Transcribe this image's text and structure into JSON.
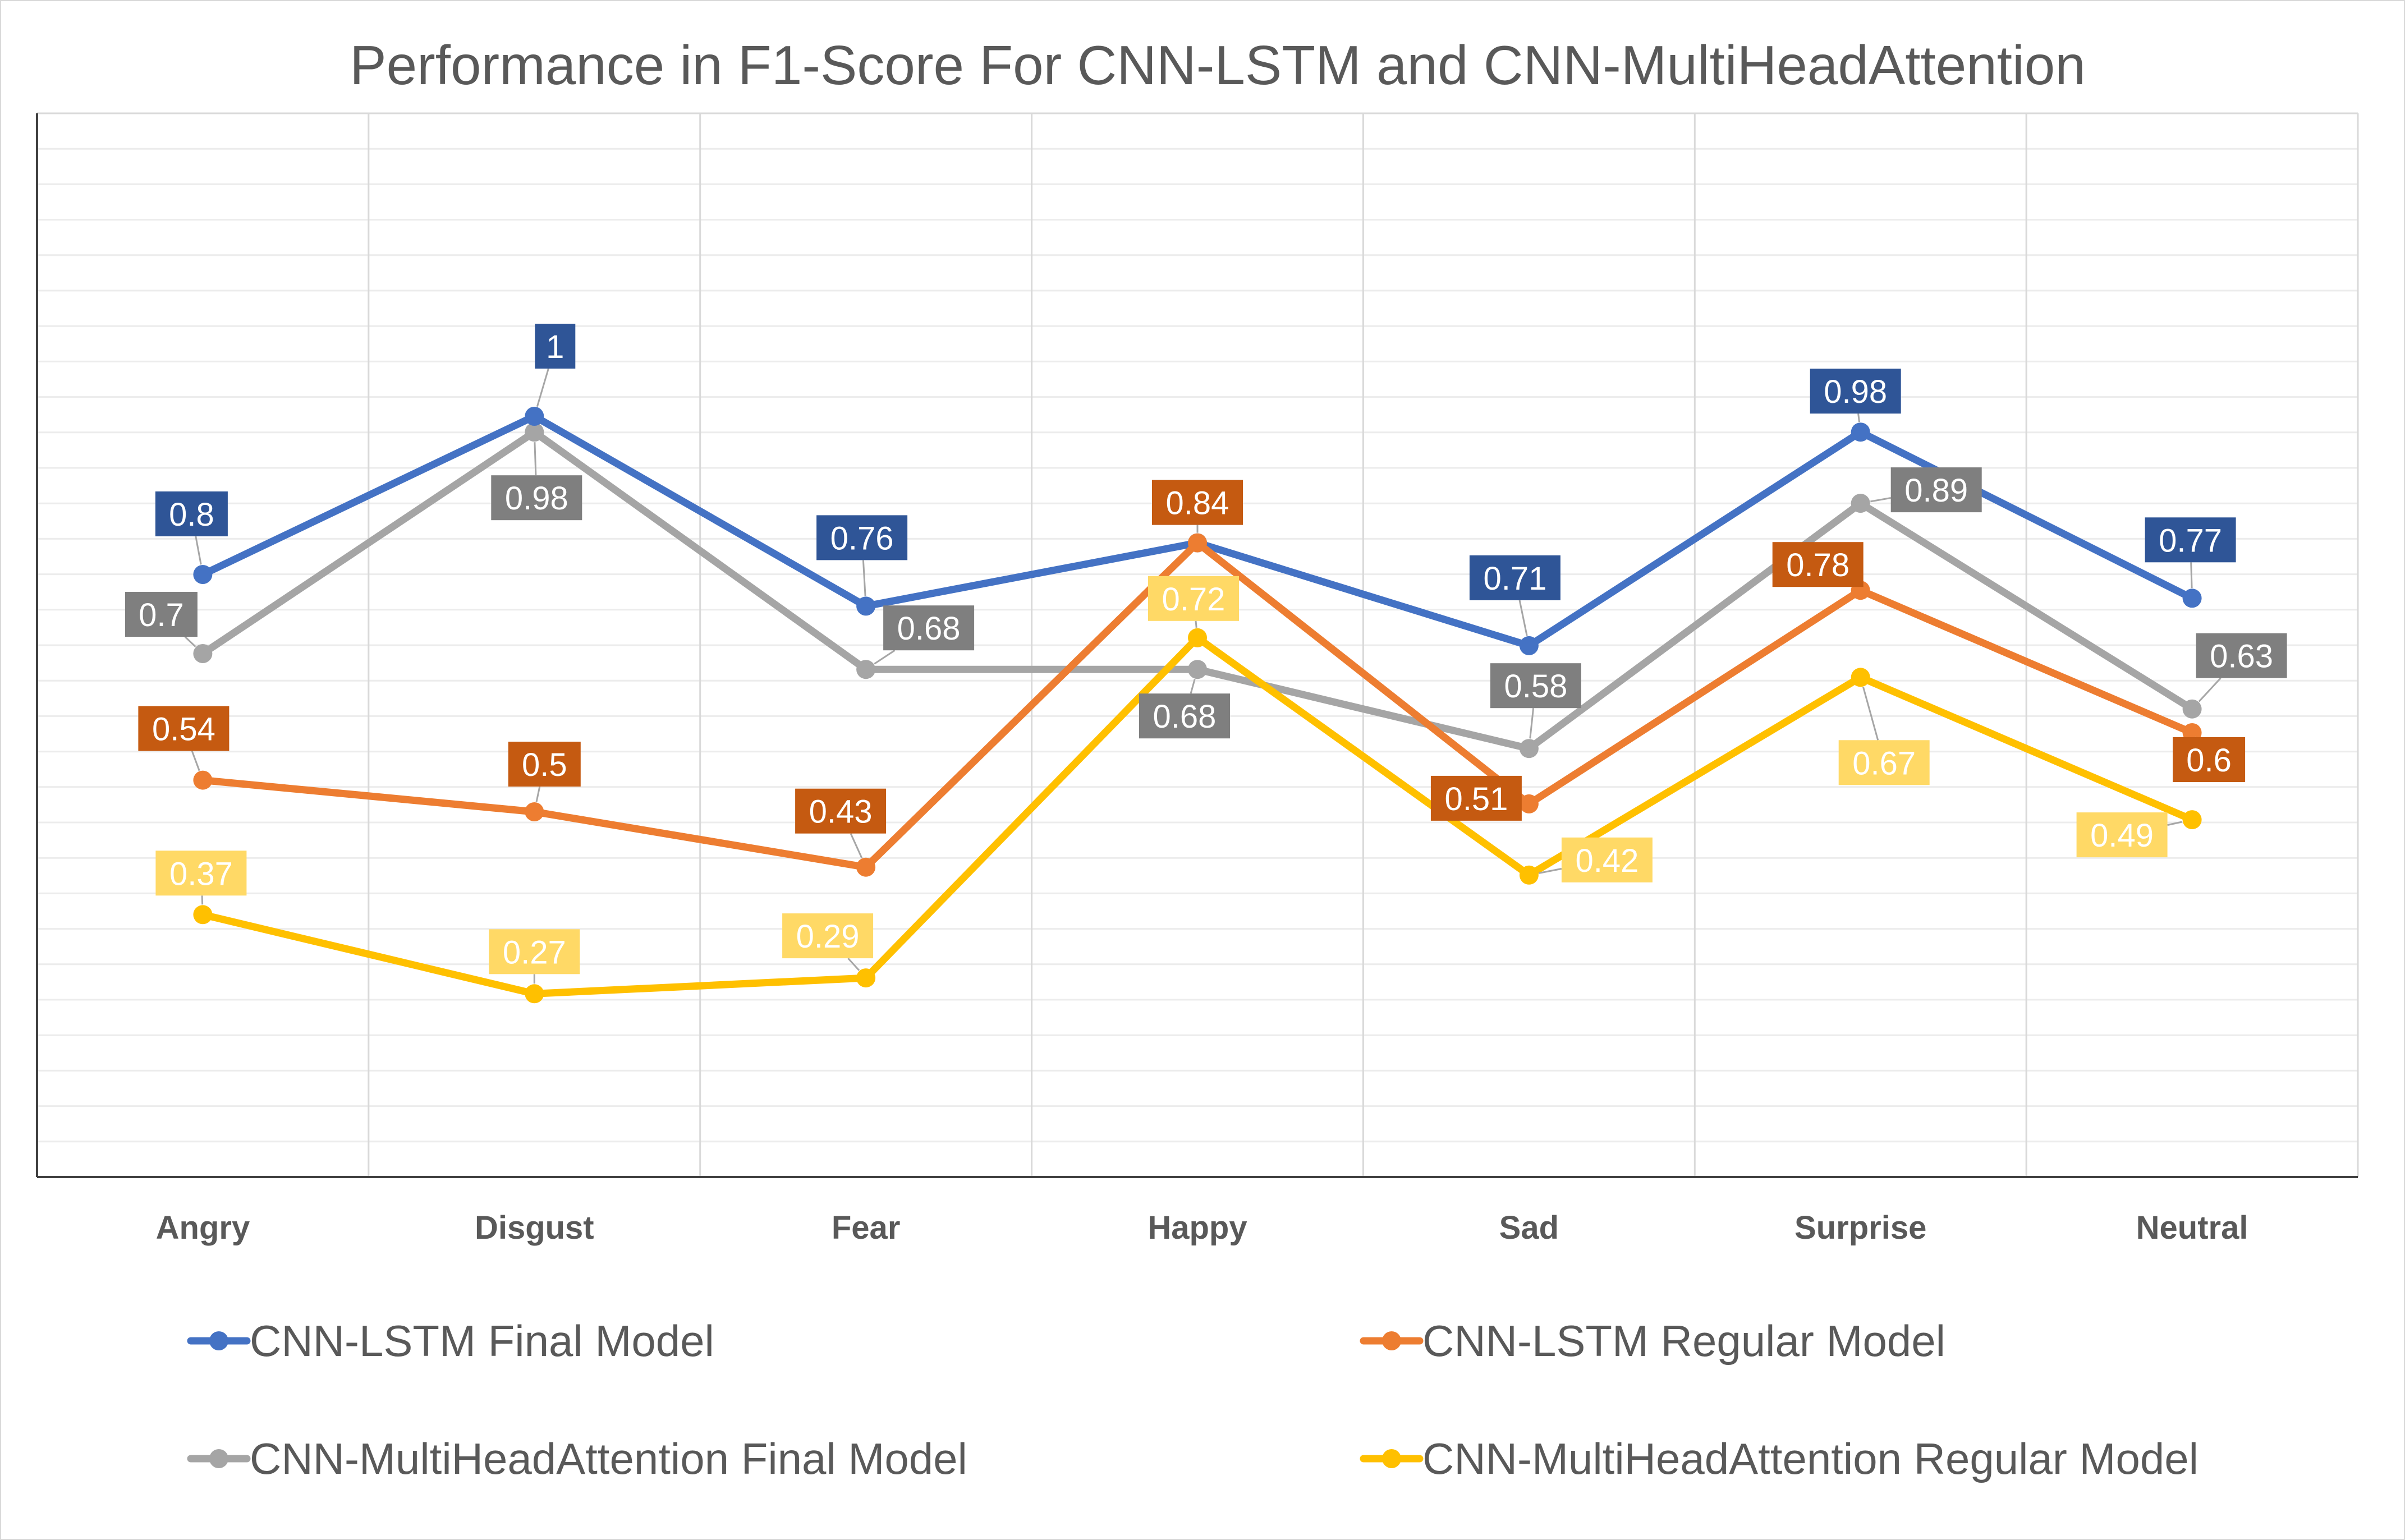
{
  "chart_data": {
    "type": "line",
    "title": "Performance in F1-Score For CNN-LSTM and CNN-MultiHeadAttention",
    "xlabel": "",
    "ylabel": "",
    "categories": [
      "Angry",
      "Disgust",
      "Fear",
      "Happy",
      "Sad",
      "Surprise",
      "Neutral"
    ],
    "grid": true,
    "legend_position": "bottom",
    "series": [
      {
        "name": "CNN-LSTM Final Model",
        "color": "#4472c4",
        "label_color": "#2f5597",
        "values": [
          0.8,
          1,
          0.76,
          0.84,
          0.71,
          0.98,
          0.77
        ],
        "labels": [
          "0.8",
          "1",
          "0.76",
          "0.84",
          "0.71",
          "0.98",
          "0.77"
        ]
      },
      {
        "name": "CNN-LSTM Regular Model",
        "color": "#ed7d31",
        "label_color": "#c55a11",
        "values": [
          0.54,
          0.5,
          0.43,
          0.84,
          0.51,
          0.78,
          0.6
        ],
        "labels": [
          "0.54",
          "0.5",
          "0.43",
          "0.84",
          "0.51",
          "0.78",
          "0.6"
        ]
      },
      {
        "name": "CNN-MultiHeadAttention Final Model",
        "color": "#a5a5a5",
        "label_color": "#7f7f7f",
        "values": [
          0.7,
          0.98,
          0.68,
          0.68,
          0.58,
          0.89,
          0.63
        ],
        "labels": [
          "0.7",
          "0.98",
          "0.68",
          "0.68",
          "0.58",
          "0.89",
          "0.63"
        ]
      },
      {
        "name": "CNN-MultiHeadAttention Regular Model",
        "color": "#ffc000",
        "label_color": "#ffd966",
        "values": [
          0.37,
          0.27,
          0.29,
          0.72,
          0.42,
          0.67,
          0.49
        ],
        "labels": [
          "0.37",
          "0.27",
          "0.29",
          "0.72",
          "0.42",
          "0.67",
          "0.49"
        ]
      }
    ]
  }
}
